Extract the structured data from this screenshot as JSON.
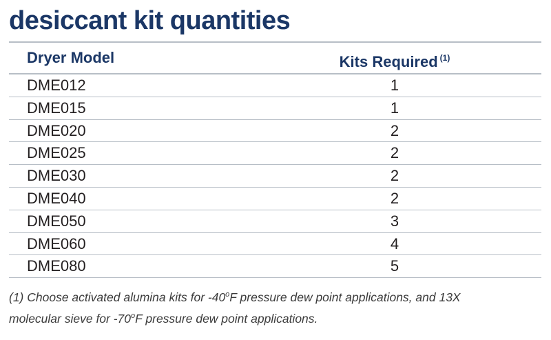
{
  "title": "desiccant kit quantities",
  "table": {
    "headers": {
      "model": "Dryer Model",
      "kits": "Kits Required",
      "kits_note": "(1)"
    },
    "rows": [
      {
        "model": "DME012",
        "kits": "1"
      },
      {
        "model": "DME015",
        "kits": "1"
      },
      {
        "model": "DME020",
        "kits": "2"
      },
      {
        "model": "DME025",
        "kits": "2"
      },
      {
        "model": "DME030",
        "kits": "2"
      },
      {
        "model": "DME040",
        "kits": "2"
      },
      {
        "model": "DME050",
        "kits": "3"
      },
      {
        "model": "DME060",
        "kits": "4"
      },
      {
        "model": "DME080",
        "kits": "5"
      }
    ]
  },
  "footnote": {
    "line1_a": "(1) Choose activated alumina kits for -40",
    "deg1": "o",
    "line1_b": "F pressure dew point applications, and 13X",
    "line2_a": "molecular sieve for -70",
    "deg2": "o",
    "line2_b": "F pressure dew point applications."
  },
  "colors": {
    "heading": "#1b3766",
    "rule": "#b7bec6",
    "text": "#231f20"
  }
}
